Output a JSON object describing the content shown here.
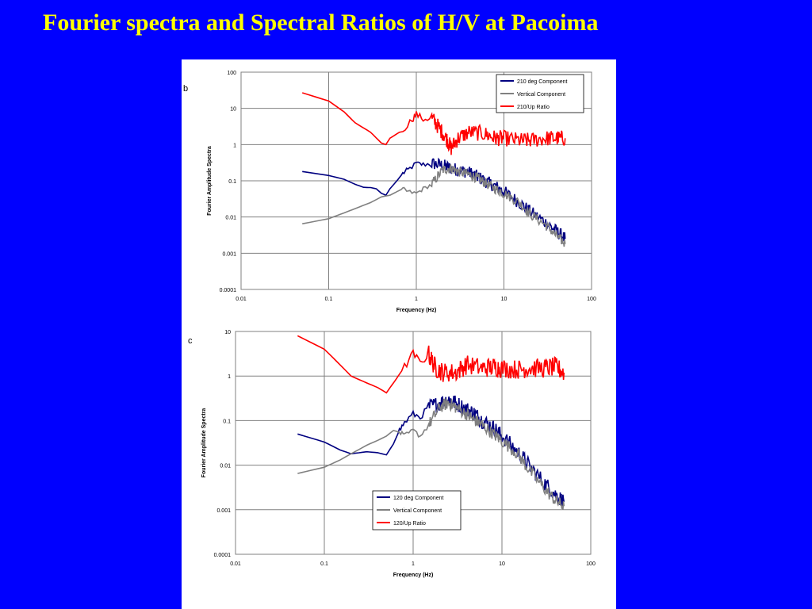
{
  "slide": {
    "title": "Fourier spectra and Spectral Ratios of H/V at Pacoima",
    "background_color": "#0000ff",
    "title_color": "#ffff00"
  },
  "chart_data": [
    {
      "panel_label": "b",
      "type": "line",
      "xscale": "log",
      "yscale": "log",
      "xlim": [
        0.01,
        100
      ],
      "ylim": [
        0.0001,
        100
      ],
      "x_ticks": [
        "0.01",
        "0.1",
        "1",
        "10",
        "100"
      ],
      "y_ticks": [
        "0.0001",
        "0.001",
        "0.01",
        "0.1",
        "1",
        "10",
        "100"
      ],
      "xlabel": "Frequency (Hz)",
      "ylabel": "Fourier Amplitude Spectra",
      "grid": true,
      "legend_position": "top-right",
      "series": [
        {
          "name": "210 deg Component",
          "color": "#000080",
          "noise": 0.18,
          "points": [
            [
              0.05,
              0.18
            ],
            [
              0.1,
              0.14
            ],
            [
              0.15,
              0.11
            ],
            [
              0.2,
              0.08
            ],
            [
              0.25,
              0.066
            ],
            [
              0.3,
              0.065
            ],
            [
              0.35,
              0.06
            ],
            [
              0.4,
              0.045
            ],
            [
              0.45,
              0.04
            ],
            [
              0.5,
              0.06
            ],
            [
              0.6,
              0.1
            ],
            [
              0.7,
              0.16
            ],
            [
              0.8,
              0.2
            ],
            [
              1.0,
              0.3
            ],
            [
              1.2,
              0.28
            ],
            [
              1.5,
              0.3
            ],
            [
              2,
              0.27
            ],
            [
              2.5,
              0.22
            ],
            [
              3,
              0.2
            ],
            [
              4,
              0.17
            ],
            [
              5,
              0.13
            ],
            [
              6,
              0.1
            ],
            [
              8,
              0.07
            ],
            [
              10,
              0.05
            ],
            [
              15,
              0.025
            ],
            [
              20,
              0.014
            ],
            [
              30,
              0.007
            ],
            [
              40,
              0.004
            ],
            [
              50,
              0.0025
            ]
          ]
        },
        {
          "name": "Vertical Component",
          "color": "#808080",
          "noise": 0.14,
          "points": [
            [
              0.05,
              0.0065
            ],
            [
              0.1,
              0.009
            ],
            [
              0.15,
              0.013
            ],
            [
              0.2,
              0.017
            ],
            [
              0.3,
              0.025
            ],
            [
              0.4,
              0.036
            ],
            [
              0.5,
              0.04
            ],
            [
              0.6,
              0.05
            ],
            [
              0.7,
              0.06
            ],
            [
              0.8,
              0.05
            ],
            [
              1.0,
              0.045
            ],
            [
              1.2,
              0.06
            ],
            [
              1.5,
              0.08
            ],
            [
              2,
              0.2
            ],
            [
              2.5,
              0.22
            ],
            [
              3,
              0.18
            ],
            [
              4,
              0.15
            ],
            [
              5,
              0.12
            ],
            [
              6,
              0.09
            ],
            [
              8,
              0.06
            ],
            [
              10,
              0.045
            ],
            [
              15,
              0.025
            ],
            [
              20,
              0.012
            ],
            [
              30,
              0.006
            ],
            [
              40,
              0.003
            ],
            [
              50,
              0.0018
            ]
          ]
        },
        {
          "name": "210/Up Ratio",
          "color": "#ff0000",
          "noise": 0.22,
          "points": [
            [
              0.05,
              27
            ],
            [
              0.1,
              16
            ],
            [
              0.15,
              8
            ],
            [
              0.2,
              4
            ],
            [
              0.3,
              2.2
            ],
            [
              0.4,
              1.1
            ],
            [
              0.45,
              1.0
            ],
            [
              0.5,
              1.5
            ],
            [
              0.7,
              2.5
            ],
            [
              0.9,
              5
            ],
            [
              1.0,
              7
            ],
            [
              1.2,
              5
            ],
            [
              1.5,
              5.5
            ],
            [
              1.8,
              3
            ],
            [
              2.2,
              1.5
            ],
            [
              2.5,
              0.8
            ],
            [
              3,
              1.5
            ],
            [
              4,
              2.2
            ],
            [
              6,
              2
            ],
            [
              8,
              1.5
            ],
            [
              10,
              1.5
            ],
            [
              15,
              1.3
            ],
            [
              20,
              1.3
            ],
            [
              30,
              1.5
            ],
            [
              40,
              1.5
            ],
            [
              50,
              1.5
            ]
          ]
        }
      ]
    },
    {
      "panel_label": "c",
      "type": "line",
      "xscale": "log",
      "yscale": "log",
      "xlim": [
        0.01,
        100
      ],
      "ylim": [
        0.0001,
        10
      ],
      "x_ticks": [
        "0.01",
        "0.1",
        "1",
        "10",
        "100"
      ],
      "y_ticks": [
        "0.0001",
        "0.001",
        "0.01",
        "0.1",
        "1",
        "10"
      ],
      "xlabel": "Frequency (Hz)",
      "ylabel": "Fourier Amplitude Spectra",
      "grid": true,
      "legend_position": "bottom-center",
      "series": [
        {
          "name": "120 deg Component",
          "color": "#000080",
          "noise": 0.18,
          "points": [
            [
              0.05,
              0.05
            ],
            [
              0.1,
              0.033
            ],
            [
              0.15,
              0.022
            ],
            [
              0.2,
              0.018
            ],
            [
              0.3,
              0.02
            ],
            [
              0.4,
              0.019
            ],
            [
              0.5,
              0.017
            ],
            [
              0.6,
              0.03
            ],
            [
              0.7,
              0.06
            ],
            [
              0.8,
              0.09
            ],
            [
              1.0,
              0.14
            ],
            [
              1.2,
              0.12
            ],
            [
              1.5,
              0.2
            ],
            [
              2,
              0.25
            ],
            [
              2.5,
              0.3
            ],
            [
              3,
              0.25
            ],
            [
              4,
              0.18
            ],
            [
              5,
              0.14
            ],
            [
              6,
              0.1
            ],
            [
              8,
              0.07
            ],
            [
              10,
              0.045
            ],
            [
              15,
              0.02
            ],
            [
              20,
              0.01
            ],
            [
              30,
              0.004
            ],
            [
              40,
              0.0022
            ],
            [
              50,
              0.0015
            ]
          ]
        },
        {
          "name": "Vertical Component",
          "color": "#808080",
          "noise": 0.14,
          "points": [
            [
              0.05,
              0.0065
            ],
            [
              0.1,
              0.009
            ],
            [
              0.15,
              0.013
            ],
            [
              0.2,
              0.018
            ],
            [
              0.3,
              0.028
            ],
            [
              0.4,
              0.036
            ],
            [
              0.5,
              0.045
            ],
            [
              0.6,
              0.06
            ],
            [
              0.7,
              0.055
            ],
            [
              0.8,
              0.045
            ],
            [
              1.0,
              0.06
            ],
            [
              1.2,
              0.045
            ],
            [
              1.5,
              0.08
            ],
            [
              2,
              0.2
            ],
            [
              2.5,
              0.25
            ],
            [
              3,
              0.2
            ],
            [
              4,
              0.14
            ],
            [
              5,
              0.1
            ],
            [
              6,
              0.08
            ],
            [
              8,
              0.05
            ],
            [
              10,
              0.035
            ],
            [
              15,
              0.018
            ],
            [
              20,
              0.008
            ],
            [
              30,
              0.003
            ],
            [
              40,
              0.0016
            ],
            [
              50,
              0.0012
            ]
          ]
        },
        {
          "name": "120/Up Ratio",
          "color": "#ff0000",
          "noise": 0.22,
          "points": [
            [
              0.05,
              8
            ],
            [
              0.1,
              4
            ],
            [
              0.15,
              1.8
            ],
            [
              0.2,
              1.0
            ],
            [
              0.3,
              0.7
            ],
            [
              0.4,
              0.55
            ],
            [
              0.5,
              0.42
            ],
            [
              0.6,
              0.7
            ],
            [
              0.8,
              1.6
            ],
            [
              1.0,
              3.2
            ],
            [
              1.2,
              2
            ],
            [
              1.5,
              3
            ],
            [
              1.8,
              1.5
            ],
            [
              2.2,
              1.2
            ],
            [
              3,
              1.2
            ],
            [
              4,
              1.8
            ],
            [
              6,
              1.5
            ],
            [
              8,
              1.6
            ],
            [
              10,
              1.5
            ],
            [
              15,
              1.4
            ],
            [
              20,
              1.5
            ],
            [
              30,
              1.5
            ],
            [
              40,
              1.6
            ],
            [
              50,
              1.2
            ]
          ]
        }
      ]
    }
  ]
}
